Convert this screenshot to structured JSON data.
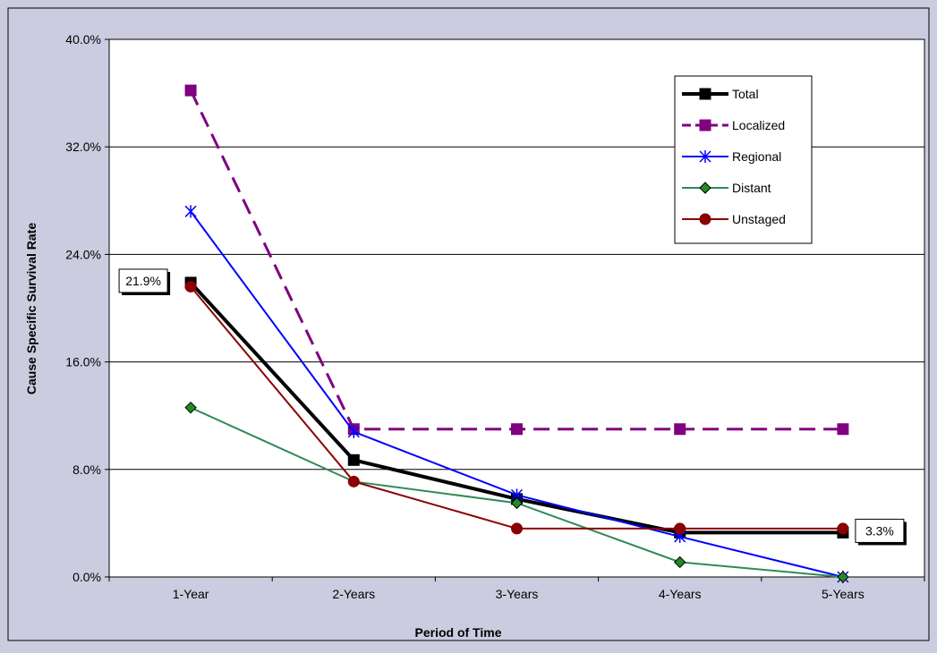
{
  "chart_data": {
    "type": "line",
    "title": "",
    "xlabel": "Period of Time",
    "ylabel": "Cause Specific Survival Rate",
    "categories": [
      "1-Year",
      "2-Years",
      "3-Years",
      "4-Years",
      "5-Years"
    ],
    "ylim": [
      0,
      40
    ],
    "yticks": [
      "0.0%",
      "8.0%",
      "16.0%",
      "24.0%",
      "32.0%",
      "40.0%"
    ],
    "grid": true,
    "legend_position": "top-right",
    "series": [
      {
        "name": "Total",
        "values": [
          21.9,
          8.7,
          5.8,
          3.3,
          3.3
        ],
        "color": "#000000",
        "marker": "square",
        "dash": false
      },
      {
        "name": "Localized",
        "values": [
          36.2,
          11.0,
          11.0,
          11.0,
          11.0
        ],
        "color": "#800080",
        "marker": "square",
        "dash": true
      },
      {
        "name": "Regional",
        "values": [
          27.2,
          10.8,
          6.1,
          3.0,
          0.0
        ],
        "color": "#0000ff",
        "marker": "star",
        "dash": false
      },
      {
        "name": "Distant",
        "values": [
          12.6,
          7.1,
          5.5,
          1.1,
          0.0
        ],
        "color": "#2e8b57",
        "marker": "diamond",
        "dash": false
      },
      {
        "name": "Unstaged",
        "values": [
          21.6,
          7.1,
          3.6,
          3.6,
          3.6
        ],
        "color": "#8b0000",
        "marker": "circle",
        "dash": false
      }
    ],
    "annotations": [
      {
        "series": "Total",
        "point": "1-Year",
        "text": "21.9%"
      },
      {
        "series": "Total",
        "point": "5-Years",
        "text": "3.3%"
      }
    ]
  }
}
